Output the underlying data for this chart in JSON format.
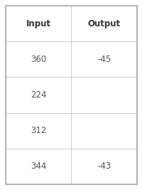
{
  "headers": [
    "Input",
    "Output"
  ],
  "rows": [
    [
      "360",
      "-45"
    ],
    [
      "224",
      ""
    ],
    [
      "312",
      ""
    ],
    [
      "344",
      "-43"
    ]
  ],
  "header_bg": "#ffffff",
  "cell_bg": "#ffffff",
  "outer_border_color": "#aaaaaa",
  "inner_border_color": "#cccccc",
  "header_font_size": 8.5,
  "cell_font_size": 8.5,
  "header_text_color": "#333333",
  "cell_text_color": "#555555",
  "fig_bg": "#ffffff"
}
